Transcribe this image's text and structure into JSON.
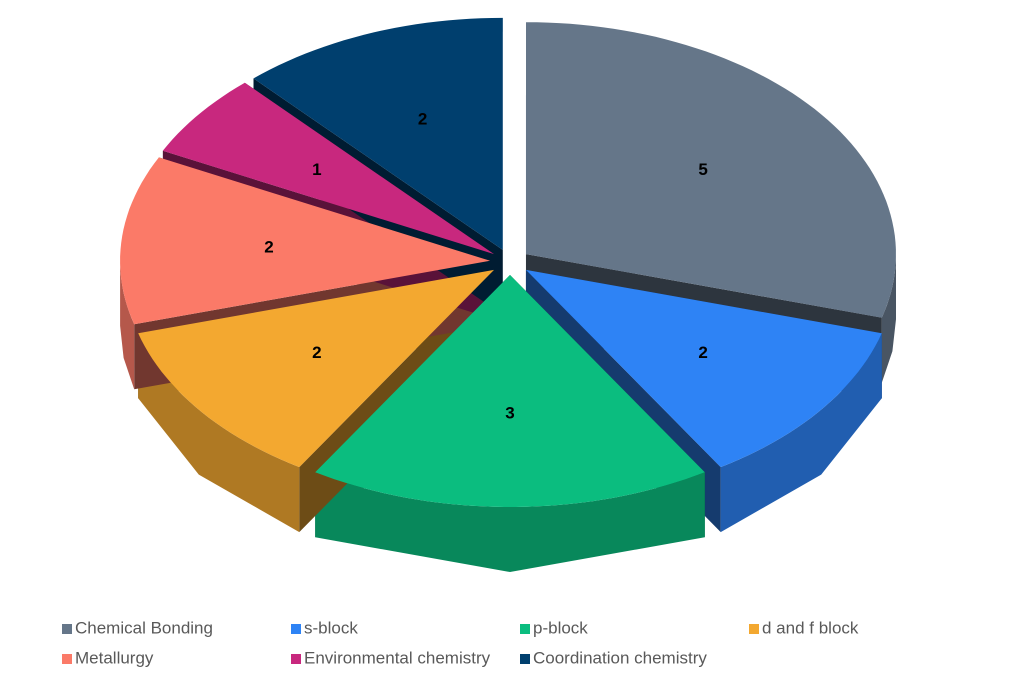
{
  "chart_data": {
    "type": "pie",
    "categories": [
      "Chemical Bonding",
      "s-block",
      "p-block",
      "d and f block",
      "Metallurgy",
      "Environmental chemistry",
      "Coordination chemistry"
    ],
    "values": [
      5,
      2,
      3,
      2,
      2,
      1,
      2
    ],
    "colors": [
      "#657689",
      "#2e83f5",
      "#0bbd7f",
      "#f3a830",
      "#fb7a68",
      "#c8287e",
      "#003f6e"
    ],
    "legend": "bottom"
  }
}
